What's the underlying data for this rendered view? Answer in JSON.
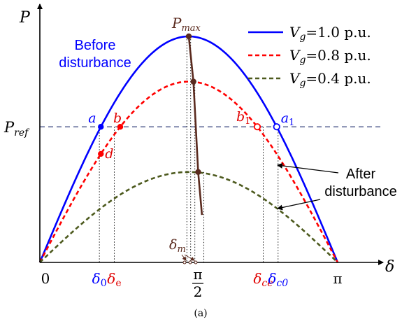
{
  "colors": {
    "axis": "#000000",
    "series_1": "#0000ff",
    "series_2": "#ff0000",
    "series_3": "#4d5a1e",
    "pmax_locus": "#5a2a1e",
    "guide": "#000000",
    "pref_line": "#1b2a6b",
    "label_blue": "#0000ff",
    "label_red": "#e00000",
    "label_brown": "#5a2a1e"
  },
  "caption": "(a)",
  "chart_data": {
    "type": "line",
    "x_axis_label": "δ",
    "y_axis_label": "P",
    "x_range": [
      0,
      3.14159
    ],
    "y_range": [
      0,
      1.1
    ],
    "x_ticks": [
      {
        "value": 0,
        "label": "0",
        "color": "#000000"
      },
      {
        "value": 0.628,
        "label": "δ0",
        "color": "#0000ff"
      },
      {
        "value": 0.785,
        "label": "δe",
        "color": "#e00000"
      },
      {
        "value": 1.5708,
        "label": "π/2",
        "color": "#000000"
      },
      {
        "value": 2.356,
        "label": "δce",
        "color": "#e00000"
      },
      {
        "value": 2.513,
        "label": "δc0",
        "color": "#0000ff"
      },
      {
        "value": 3.14159,
        "label": "π",
        "color": "#000000"
      }
    ],
    "pref_value": 0.6,
    "pref_label": "Pref",
    "series": [
      {
        "name": "Vg=1.0 p.u.",
        "amplitude": 1.0,
        "style": "solid",
        "color": "#0000ff"
      },
      {
        "name": "Vg=0.8 p.u.",
        "amplitude": 0.8,
        "style": "dashed",
        "color": "#ff0000"
      },
      {
        "name": "Vg=0.4 p.u.",
        "amplitude": 0.4,
        "style": "dashed",
        "color": "#4d5a1e"
      }
    ],
    "pmax_locus": {
      "label": "Pmax",
      "points": [
        [
          1.5708,
          1.0
        ],
        [
          1.62,
          0.8
        ],
        [
          1.67,
          0.4
        ],
        [
          1.71,
          0.21
        ]
      ]
    },
    "points": [
      {
        "label": "a",
        "x": 0.6435,
        "y": 0.6,
        "fill": "#0000ff",
        "hollow": false
      },
      {
        "label": "b",
        "x": 0.8481,
        "y": 0.6,
        "fill": "#ff0000",
        "hollow": false
      },
      {
        "label": "d",
        "x": 0.6435,
        "y": 0.48,
        "fill": "#ff0000",
        "hollow": false
      },
      {
        "label": "b1",
        "x": 2.2935,
        "y": 0.6,
        "fill": "#ff0000",
        "hollow": true
      },
      {
        "label": "a1",
        "x": 2.4981,
        "y": 0.6,
        "fill": "#0000ff",
        "hollow": true
      }
    ],
    "delta_m_label": "δm",
    "annotations": [
      {
        "text_lines": [
          "Before",
          "disturbance"
        ],
        "color": "#0000ff"
      },
      {
        "text_lines": [
          "After",
          "disturbance"
        ],
        "color": "#000000"
      }
    ],
    "legend": {
      "position": "top-right",
      "entries": [
        {
          "prefix": "V",
          "sub": "g",
          "suffix": "=1.0 p.u."
        },
        {
          "prefix": "V",
          "sub": "g",
          "suffix": "=0.8 p.u."
        },
        {
          "prefix": "V",
          "sub": "g",
          "suffix": "=0.4 p.u."
        }
      ]
    }
  }
}
